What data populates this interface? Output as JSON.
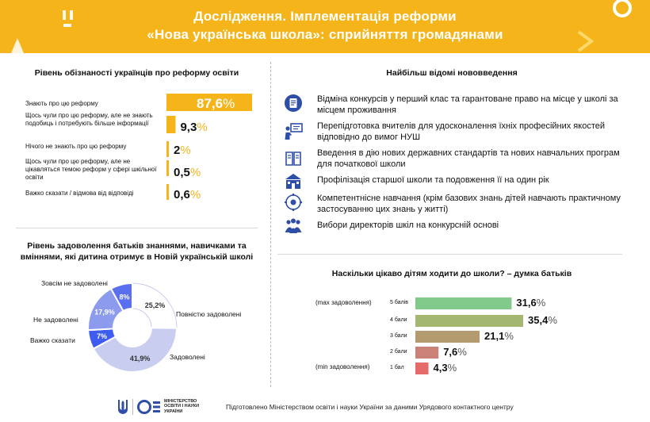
{
  "header": {
    "title_line1": "Дослідження. Імплементація реформи",
    "title_line2": "«Нова українська школа»: сприйняття громадянами",
    "bg_color": "#f4b41a"
  },
  "awareness": {
    "title": "Рівень обізнаності українців про реформу освіти",
    "items": [
      {
        "label": "Знають про цю реформу",
        "value": "87,6",
        "unit": "%"
      },
      {
        "label": "Щось чули про цю реформу, але не знають подобиць і потребують більше інформації",
        "value": "9,3",
        "unit": "%"
      },
      {
        "label": "Нічого не знають про цю реформу",
        "value": "2",
        "unit": "%"
      },
      {
        "label": "Щось чули про цю реформу, але не цікавляться темою реформ у сфері шкільної освіти",
        "value": "0,5",
        "unit": "%"
      },
      {
        "label": "Важко сказати / відмова від відповіді",
        "value": "0,6",
        "unit": "%"
      }
    ]
  },
  "features": {
    "title": "Найбільш відомі нововведення",
    "items": [
      {
        "icon": "document-icon",
        "text": "Відміна конкурсів у перший клас та гарантоване право на місце у школі за місцем проживання"
      },
      {
        "icon": "teacher-icon",
        "text": "Перепідготовка вчителів для удосконалення їхніх професійних якостей відповідно до вимог НУШ"
      },
      {
        "icon": "book-icon",
        "text": "Введення в дію нових державних стандартів та нових навчальних програм для початкової школи"
      },
      {
        "icon": "school-icon",
        "text": "Профілізація старшої школи та подовження її на один рік"
      },
      {
        "icon": "brain-gear-icon",
        "text": "Компетентнісне навчання (крім базових знань дітей навчають практичному застосуванню цих знань у житті)"
      },
      {
        "icon": "people-icon",
        "text": "Вибори директорів шкіл на конкурсній основі"
      }
    ]
  },
  "satisfaction": {
    "title_line1": "Рівень задоволення батьків знаннями, навичками та",
    "title_line2": "вміннями, які дитина отримує в Новій українській школі"
  },
  "interest": {
    "title": "Наскільки цікаво дітям ходити до школи? – думка батьків",
    "max_label": "(max задоволення)",
    "min_label": "(min задоволення)"
  },
  "footer": {
    "text": "Підготовлено Міністерством освіти і науки України за даними Урядового контактного центру",
    "ministry_line1": "МІНІСТЕРСТВО",
    "ministry_line2": "ОСВІТИ І НАУКИ",
    "ministry_line3": "УКРАЇНИ"
  },
  "chart_data": [
    {
      "type": "bar",
      "orientation": "horizontal",
      "title": "Рівень обізнаності українців про реформу освіти",
      "categories": [
        "Знають про цю реформу",
        "Щось чули про цю реформу, але не знають подобиць і потребують більше інформації",
        "Нічого не знають про цю реформу",
        "Щось чули про цю реформу, але не цікавляться темою реформ у сфері шкільної освіти",
        "Важко сказати / відмова від відповіді"
      ],
      "values": [
        87.6,
        9.3,
        2,
        0.5,
        0.6
      ],
      "color": "#f4b41a"
    },
    {
      "type": "pie",
      "title": "Рівень задоволення батьків знаннями, навичками та вміннями, які дитина отримує в Новій українській школі",
      "slices": [
        {
          "label": "Повністю задоволені",
          "value": 25.2,
          "display": "25,2",
          "color": "#ffffff"
        },
        {
          "label": "Задоволені",
          "value": 41.9,
          "display": "41,9",
          "color": "#c9cdf0"
        },
        {
          "label": "Важко сказати",
          "value": 7,
          "display": "7",
          "color": "#3f5cf0"
        },
        {
          "label": "Не задоволені",
          "value": 17.9,
          "display": "17,9",
          "color": "#8c9bee"
        },
        {
          "label": "Зовсім не задоволені",
          "value": 8,
          "display": "8",
          "color": "#5a6ff0"
        }
      ],
      "unit": "%"
    },
    {
      "type": "bar",
      "orientation": "horizontal",
      "title": "Наскільки цікаво дітям ходити до школи? – думка батьків",
      "categories": [
        "5 балів",
        "4 бали",
        "3 бали",
        "2 бали",
        "1 бал"
      ],
      "values": [
        31.6,
        35.4,
        21.1,
        7.6,
        4.3
      ],
      "display": [
        "31,6",
        "35,4",
        "21,1",
        "7,6",
        "4,3"
      ],
      "colors": [
        "#82c98c",
        "#a3b770",
        "#b39b6f",
        "#c98178",
        "#e56b6b"
      ],
      "unit": "%"
    }
  ]
}
